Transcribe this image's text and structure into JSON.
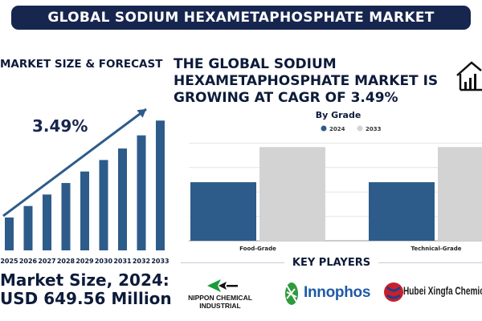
{
  "header": {
    "title": "GLOBAL SODIUM HEXAMETAPHOSPHATE MARKET"
  },
  "forecast": {
    "section_title": "MARKET SIZE & FORECAST",
    "cagr_label": "3.49%",
    "market_size_line1": "Market Size, 2024:",
    "market_size_line2": "USD 649.56 Million"
  },
  "headline": {
    "text": "THE GLOBAL SODIUM HEXAMETAPHOSPHATE MARKET IS GROWING AT CAGR OF 3.49%"
  },
  "key_players": {
    "title": "KEY PLAYERS",
    "logos": [
      {
        "name": "NIPPON CHEMICAL INDUSTRIAL",
        "line1": "NIPPON CHEMICAL",
        "line2": "INDUSTRIAL",
        "icon": "nippon-chevron-logo"
      },
      {
        "name": "Innophos",
        "icon": "innophos-leaf-logo"
      },
      {
        "name": "Hubei Xingfa Chemicals Group",
        "icon": "hubei-globe-logo"
      }
    ]
  },
  "colors": {
    "banner": "#17264f",
    "bar_2024": "#2d5c8a",
    "bar_2033": "#d3d3d3",
    "growth_bar": "#2d5c8a",
    "trend_arrow": "#2d5c8a"
  },
  "chart_data": [
    {
      "type": "bar",
      "title": "",
      "categories": [
        "2025",
        "2026",
        "2027",
        "2028",
        "2029",
        "2030",
        "2031",
        "2032",
        "2033"
      ],
      "values": [
        1.0,
        1.35,
        1.7,
        2.05,
        2.4,
        2.75,
        3.1,
        3.5,
        3.95
      ],
      "xlabel": "",
      "ylabel": "",
      "ylim": [
        0,
        4.2
      ],
      "grid": false,
      "annotations": [
        "3.49%"
      ],
      "trend_arrow": true
    },
    {
      "type": "bar",
      "title": "By Grade",
      "categories": [
        "Food-Grade",
        "Technical-Grade"
      ],
      "series": [
        {
          "name": "2024",
          "values": [
            0.6,
            0.6
          ]
        },
        {
          "name": "2033",
          "values": [
            0.96,
            0.96
          ]
        }
      ],
      "ylim": [
        0,
        1.0
      ],
      "grid": true,
      "legend": "top-center"
    }
  ]
}
